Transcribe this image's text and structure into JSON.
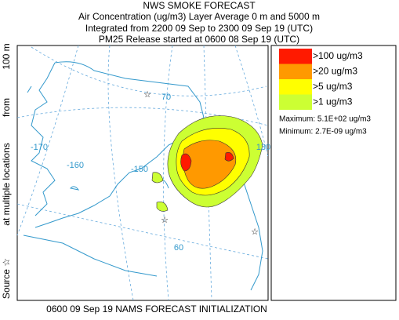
{
  "header": {
    "title": "NWS SMOKE FORECAST",
    "lines": [
      "Air Concentration (ug/m3) Layer Average    0 m and  5000 m",
      "Integrated from 2200 09 Sep to 2300 09 Sep 19 (UTC)",
      "PM25 Release started at 0600 08 Sep 19 (UTC)"
    ]
  },
  "side_label": [
    "Source ☆",
    "at multiple locations",
    "from",
    "100 m"
  ],
  "map": {
    "graticule_labels": [
      "70",
      "-170",
      "-160",
      "-150",
      "130",
      "60"
    ]
  },
  "legend": {
    "items": [
      {
        "label": ">100 ug/m3",
        "color": "#ff1a00"
      },
      {
        "label": ">20 ug/m3",
        "color": "#ff9900"
      },
      {
        "label": ">5 ug/m3",
        "color": "#ffff00"
      },
      {
        "label": ">1 ug/m3",
        "color": "#ccff33"
      }
    ],
    "maximum": "Maximum: 5.1E+02 ug/m3",
    "minimum": "Minimum: 2.7E-09 ug/m3"
  },
  "footer": "0600 09 Sep 19 NAMS FORECAST INITIALIZATION"
}
